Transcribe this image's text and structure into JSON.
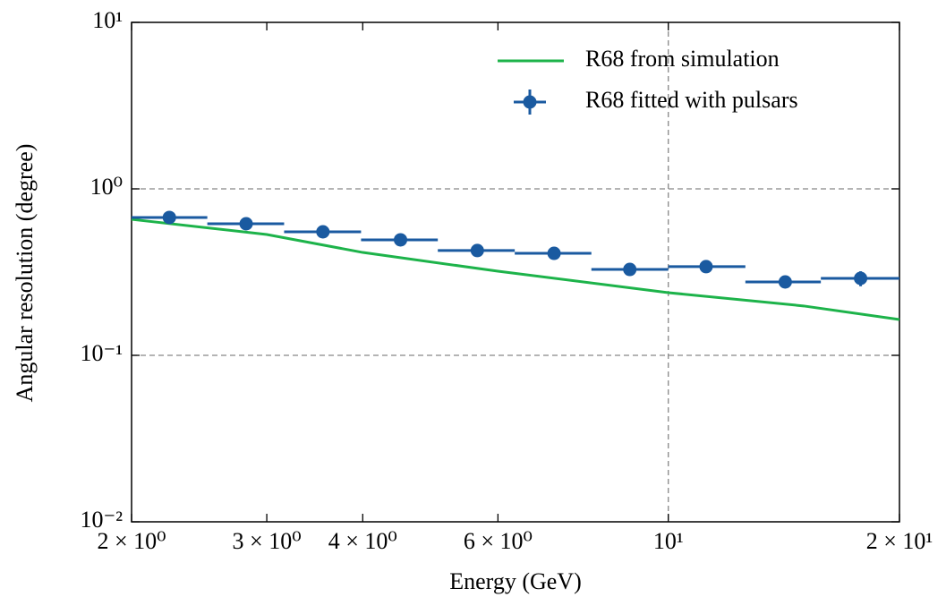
{
  "chart_data": {
    "type": "scatter",
    "xlabel": "Energy (GeV)",
    "ylabel": "Angular resolution (degree)",
    "xscale": "log",
    "yscale": "log",
    "xlim": [
      2,
      20
    ],
    "ylim": [
      0.01,
      10
    ],
    "xticks": [
      {
        "value": 2,
        "label": "2 × 10⁰"
      },
      {
        "value": 3,
        "label": "3 × 10⁰"
      },
      {
        "value": 4,
        "label": "4 × 10⁰"
      },
      {
        "value": 6,
        "label": "6 × 10⁰"
      },
      {
        "value": 10,
        "label": "10¹"
      },
      {
        "value": 20,
        "label": "2 × 10¹"
      }
    ],
    "yticks": [
      {
        "value": 0.01,
        "label": "10⁻²"
      },
      {
        "value": 0.1,
        "label": "10⁻¹"
      },
      {
        "value": 1,
        "label": "10⁰"
      },
      {
        "value": 10,
        "label": "10¹"
      }
    ],
    "grid_x": [
      10
    ],
    "grid_y": [
      0.1,
      1
    ],
    "legend": "upper right",
    "lines": [
      {
        "name": "R68 from simulation",
        "color": "#1db34a",
        "x": [
          2,
          3,
          4,
          6,
          10,
          15,
          20
        ],
        "values": [
          0.656,
          0.532,
          0.415,
          0.32,
          0.238,
          0.198,
          0.164
        ]
      }
    ],
    "series": [
      {
        "name": "R68 fitted with pulsars",
        "color": "#1a5aa0",
        "x": [
          2.24,
          2.82,
          3.55,
          4.48,
          5.64,
          7.1,
          8.91,
          11.2,
          14.2,
          17.8
        ],
        "bin_edges": [
          2,
          2.51,
          3.16,
          3.98,
          5.01,
          6.31,
          7.94,
          10,
          12.6,
          15.8,
          20
        ],
        "values": [
          0.673,
          0.617,
          0.552,
          0.494,
          0.426,
          0.41,
          0.328,
          0.341,
          0.276,
          0.29
        ],
        "yerr": [
          0.01,
          0.01,
          0.01,
          0.01,
          0.01,
          0.01,
          0.01,
          0.01,
          0.01,
          0.03
        ]
      }
    ]
  }
}
